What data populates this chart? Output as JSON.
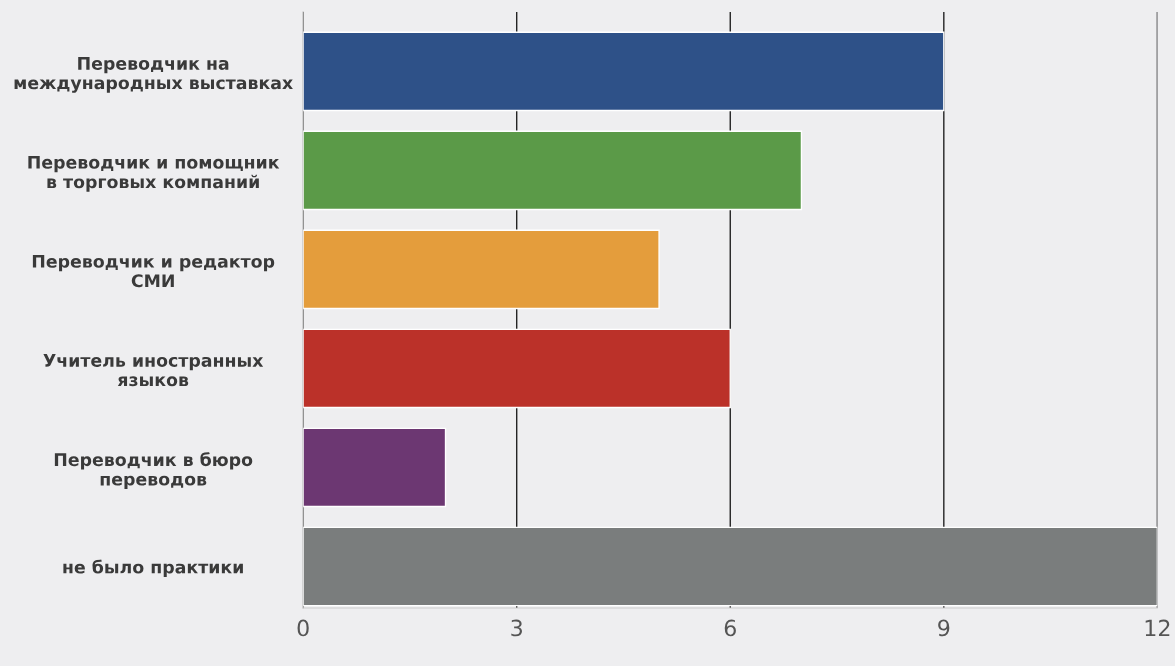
{
  "chart_data": {
    "type": "bar",
    "orientation": "horizontal",
    "categories": [
      "Переводчик на\nмеждународных выставках",
      "Переводчик и помощник\nв торговых компаний",
      "Переводчик и редактор\nСМИ",
      "Учитель иностранных\nязыков",
      "Переводчик в бюро\nпереводов",
      "не было практики"
    ],
    "values": [
      9,
      7,
      5,
      6,
      2,
      12
    ],
    "colors": [
      "#2e5188",
      "#5b9a48",
      "#e49d3c",
      "#bb3129",
      "#6c3772",
      "#7a7d7d"
    ],
    "xlim": [
      0,
      12
    ],
    "xticks": [
      0,
      3,
      6,
      9,
      12
    ],
    "grid": "x",
    "legend": false
  }
}
